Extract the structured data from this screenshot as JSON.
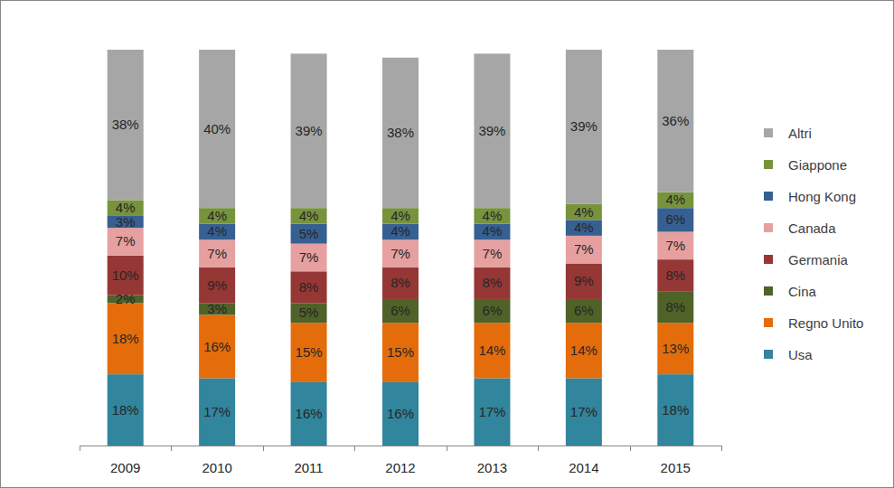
{
  "chart_data": {
    "type": "bar",
    "stacked": true,
    "data_labels": true,
    "tick_labels": "x",
    "legend": "right",
    "categories": [
      "2009",
      "2010",
      "2011",
      "2012",
      "2013",
      "2014",
      "2015"
    ],
    "ylim": [
      0,
      100
    ],
    "series": [
      {
        "name": "Usa",
        "color": "#31859c",
        "values": [
          18,
          17,
          16,
          16,
          17,
          17,
          18
        ],
        "value_labels": [
          "18%",
          "17%",
          "16%",
          "16%",
          "17%",
          "17%",
          "18%"
        ]
      },
      {
        "name": "Regno Unito",
        "color": "#e46c0a",
        "values": [
          18,
          16,
          15,
          15,
          14,
          14,
          13
        ],
        "value_labels": [
          "18%",
          "16%",
          "15%",
          "15%",
          "14%",
          "14%",
          "13%"
        ]
      },
      {
        "name": "Cina",
        "color": "#4f6228",
        "values": [
          2,
          3,
          5,
          6,
          6,
          6,
          8
        ],
        "value_labels": [
          "2%",
          "3%",
          "5%",
          "6%",
          "6%",
          "6%",
          "8%"
        ]
      },
      {
        "name": "Germania",
        "color": "#953735",
        "values": [
          10,
          9,
          8,
          8,
          8,
          9,
          8
        ],
        "value_labels": [
          "10%",
          "9%",
          "8%",
          "8%",
          "8%",
          "9%",
          "8%"
        ]
      },
      {
        "name": "Canada",
        "color": "#e6a0a0",
        "values": [
          7,
          7,
          7,
          7,
          7,
          7,
          7
        ],
        "value_labels": [
          "7%",
          "7%",
          "7%",
          "7%",
          "7%",
          "7%",
          "7%"
        ]
      },
      {
        "name": "Hong Kong",
        "color": "#376092",
        "values": [
          3,
          4,
          5,
          4,
          4,
          4,
          6
        ],
        "value_labels": [
          "3%",
          "4%",
          "5%",
          "4%",
          "4%",
          "4%",
          "6%"
        ]
      },
      {
        "name": "Giappone",
        "color": "#77933c",
        "values": [
          4,
          4,
          4,
          4,
          4,
          4,
          4
        ],
        "value_labels": [
          "4%",
          "4%",
          "4%",
          "4%",
          "4%",
          "4%",
          "4%"
        ]
      },
      {
        "name": "Altri",
        "color": "#a6a6a6",
        "values": [
          38,
          40,
          39,
          38,
          39,
          39,
          36
        ],
        "value_labels": [
          "38%",
          "40%",
          "39%",
          "38%",
          "39%",
          "39%",
          "36%"
        ]
      }
    ]
  }
}
